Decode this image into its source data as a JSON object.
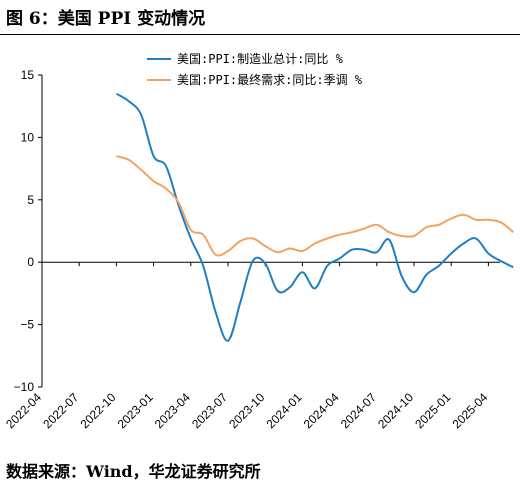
{
  "figure_title": "图 6：美国 PPI 变动情况",
  "source_note": "数据来源：Wind，华龙证券研究所",
  "chart_data": {
    "type": "line",
    "title": "",
    "xlabel": "",
    "ylabel": "",
    "ylim": [
      -10,
      15
    ],
    "yticks": [
      -10,
      -5,
      0,
      5,
      10,
      15
    ],
    "y_tick_labels": [
      "−10",
      "−5",
      "0",
      "5",
      "10",
      "15"
    ],
    "x_tick_labels": [
      "2022-04",
      "2022-07",
      "2022-10",
      "2023-01",
      "2023-04",
      "2023-07",
      "2023-10",
      "2024-01",
      "2024-04",
      "2024-07",
      "2024-10",
      "2025-01",
      "2025-04"
    ],
    "grid": false,
    "legend": "top-center",
    "series": [
      {
        "name": "美国:PPI:制造业总计:同比 %",
        "color": "#1f7fc4",
        "points": [
          [
            "2022-10",
            13.5
          ],
          [
            "2022-11",
            12.9
          ],
          [
            "2022-12",
            11.8
          ],
          [
            "2023-01",
            8.5
          ],
          [
            "2023-02",
            7.7
          ],
          [
            "2023-03",
            4.6
          ],
          [
            "2023-04",
            1.9
          ],
          [
            "2023-05",
            -0.3
          ],
          [
            "2023-06",
            -4.0
          ],
          [
            "2023-07",
            -6.3
          ],
          [
            "2023-08",
            -3.2
          ],
          [
            "2023-09",
            0.1
          ],
          [
            "2023-10",
            -0.1
          ],
          [
            "2023-11",
            -2.3
          ],
          [
            "2023-12",
            -2.0
          ],
          [
            "2024-01",
            -0.8
          ],
          [
            "2024-02",
            -2.1
          ],
          [
            "2024-03",
            -0.3
          ],
          [
            "2024-04",
            0.3
          ],
          [
            "2024-05",
            1.0
          ],
          [
            "2024-06",
            1.0
          ],
          [
            "2024-07",
            0.8
          ],
          [
            "2024-08",
            1.8
          ],
          [
            "2024-09",
            -1.1
          ],
          [
            "2024-10",
            -2.4
          ],
          [
            "2024-11",
            -1.0
          ],
          [
            "2024-12",
            -0.3
          ],
          [
            "2025-01",
            0.7
          ],
          [
            "2025-02",
            1.5
          ],
          [
            "2025-03",
            1.9
          ],
          [
            "2025-04",
            0.7
          ],
          [
            "2025-05",
            0.1
          ],
          [
            "2025-06",
            -0.4
          ]
        ]
      },
      {
        "name": "美国:PPI:最终需求:同比:季调 %",
        "color": "#f4a261",
        "points": [
          [
            "2022-10",
            8.5
          ],
          [
            "2022-11",
            8.2
          ],
          [
            "2022-12",
            7.4
          ],
          [
            "2023-01",
            6.5
          ],
          [
            "2023-02",
            5.9
          ],
          [
            "2023-03",
            4.8
          ],
          [
            "2023-04",
            2.6
          ],
          [
            "2023-05",
            2.2
          ],
          [
            "2023-06",
            0.6
          ],
          [
            "2023-07",
            0.9
          ],
          [
            "2023-08",
            1.7
          ],
          [
            "2023-09",
            1.9
          ],
          [
            "2023-10",
            1.3
          ],
          [
            "2023-11",
            0.8
          ],
          [
            "2023-12",
            1.1
          ],
          [
            "2024-01",
            0.9
          ],
          [
            "2024-02",
            1.5
          ],
          [
            "2024-03",
            1.9
          ],
          [
            "2024-04",
            2.2
          ],
          [
            "2024-05",
            2.4
          ],
          [
            "2024-06",
            2.7
          ],
          [
            "2024-07",
            3.0
          ],
          [
            "2024-08",
            2.4
          ],
          [
            "2024-09",
            2.1
          ],
          [
            "2024-10",
            2.1
          ],
          [
            "2024-11",
            2.8
          ],
          [
            "2024-12",
            3.0
          ],
          [
            "2025-01",
            3.5
          ],
          [
            "2025-02",
            3.8
          ],
          [
            "2025-03",
            3.4
          ],
          [
            "2025-04",
            3.4
          ],
          [
            "2025-05",
            3.2
          ],
          [
            "2025-06",
            2.4
          ]
        ]
      }
    ]
  }
}
